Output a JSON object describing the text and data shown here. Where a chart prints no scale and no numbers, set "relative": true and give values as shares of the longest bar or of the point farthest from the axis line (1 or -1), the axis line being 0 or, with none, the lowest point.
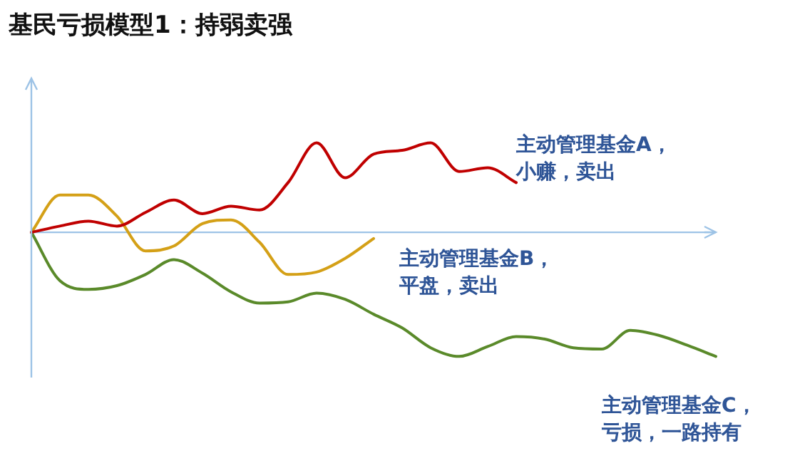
{
  "chart_data": {
    "type": "line",
    "title": "基民亏损模型1：持弱卖强",
    "relative": true,
    "ref_lines": [
      {
        "axis": "y",
        "value": 0,
        "color": "#9dc3e6"
      }
    ],
    "legend": false,
    "marker": "none",
    "line_style": "solid",
    "categories": [
      null,
      null,
      null,
      null,
      null,
      null,
      null,
      null,
      null,
      null,
      null,
      null,
      null,
      null,
      null,
      null,
      null,
      null,
      null,
      null,
      null,
      null,
      null,
      null,
      null
    ],
    "series": [
      {
        "color": "#c00000",
        "values": [
          0,
          0.05,
          0.09,
          0.05,
          0.16,
          0.26,
          0.15,
          0.21,
          0.18,
          0.4,
          0.72,
          0.44,
          0.63,
          0.66,
          0.72,
          0.49,
          0.52,
          0.4,
          null,
          null,
          null,
          null,
          null,
          null,
          null
        ]
      },
      {
        "color": "#d4a017",
        "values": [
          0,
          0.3,
          0.3,
          0.13,
          -0.15,
          -0.11,
          0.07,
          0.1,
          -0.08,
          -0.34,
          -0.32,
          -0.21,
          -0.05,
          null,
          null,
          null,
          null,
          null,
          null,
          null,
          null,
          null,
          null,
          null,
          null
        ]
      },
      {
        "color": "#5a8a2a",
        "values": [
          0,
          -0.39,
          -0.46,
          -0.43,
          -0.34,
          -0.22,
          -0.33,
          -0.48,
          -0.57,
          -0.56,
          -0.49,
          -0.54,
          -0.66,
          -0.77,
          -0.93,
          -1,
          -0.92,
          -0.84,
          -0.86,
          -0.93,
          -0.94,
          -0.79,
          -0.83,
          -0.91,
          -1
        ]
      }
    ],
    "annotations": [
      "主动管理基金A，小赚，卖出",
      "主动管理基金B，平盘，卖出",
      "主动管理基金C，亏损，一路持有"
    ]
  }
}
